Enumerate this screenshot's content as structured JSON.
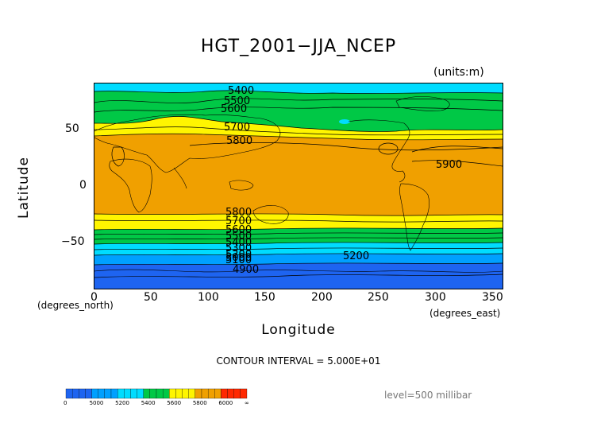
{
  "title": "HGT_2001−JJA_NCEP",
  "units": "(units:m)",
  "y_axis": {
    "label": "Latitude",
    "units": "(degrees_north)",
    "ticks": [
      "50",
      "0",
      "−50"
    ]
  },
  "x_axis": {
    "label": "Longitude",
    "units": "(degrees_east)",
    "ticks": [
      "0",
      "50",
      "100",
      "150",
      "200",
      "250",
      "300",
      "350"
    ]
  },
  "contour_interval": "CONTOUR INTERVAL = 5.000E+01",
  "level": "level=500 millibar",
  "contour_labels": [
    "5400",
    "5500",
    "5600",
    "5700",
    "5800",
    "5900",
    "5800",
    "5700",
    "5600",
    "5500",
    "5400",
    "5300",
    "5200",
    "5100",
    "5000",
    "5200",
    "4900"
  ],
  "colorbar": {
    "labels": [
      "0",
      "5000",
      "5200",
      "5400",
      "5600",
      "5800",
      "6000",
      "∞"
    ],
    "colors": [
      "#1e64f0",
      "#00a0ff",
      "#00dcff",
      "#00c846",
      "#fff500",
      "#f0a000",
      "#ff2800"
    ]
  },
  "chart_data": {
    "type": "heatmap",
    "title": "HGT_2001−JJA_NCEP",
    "xlabel": "Longitude",
    "ylabel": "Latitude",
    "xlim": [
      0,
      360
    ],
    "ylim": [
      -90,
      90
    ],
    "contour_interval": 50,
    "levels": [
      0,
      5000,
      5200,
      5400,
      5600,
      5800,
      6000
    ],
    "field_by_latitude": [
      {
        "lat": 90,
        "hgt": 5450
      },
      {
        "lat": 80,
        "hgt": 5500
      },
      {
        "lat": 70,
        "hgt": 5540
      },
      {
        "lat": 60,
        "hgt": 5580
      },
      {
        "lat": 55,
        "hgt": 5620
      },
      {
        "lat": 50,
        "hgt": 5680
      },
      {
        "lat": 45,
        "hgt": 5760
      },
      {
        "lat": 40,
        "hgt": 5820
      },
      {
        "lat": 20,
        "hgt": 5880
      },
      {
        "lat": 0,
        "hgt": 5870
      },
      {
        "lat": -20,
        "hgt": 5840
      },
      {
        "lat": -25,
        "hgt": 5790
      },
      {
        "lat": -30,
        "hgt": 5730
      },
      {
        "lat": -35,
        "hgt": 5650
      },
      {
        "lat": -40,
        "hgt": 5560
      },
      {
        "lat": -45,
        "hgt": 5450
      },
      {
        "lat": -50,
        "hgt": 5320
      },
      {
        "lat": -55,
        "hgt": 5230
      },
      {
        "lat": -60,
        "hgt": 5160
      },
      {
        "lat": -70,
        "hgt": 5050
      },
      {
        "lat": -80,
        "hgt": 4980
      },
      {
        "lat": -90,
        "hgt": 4960
      }
    ]
  }
}
